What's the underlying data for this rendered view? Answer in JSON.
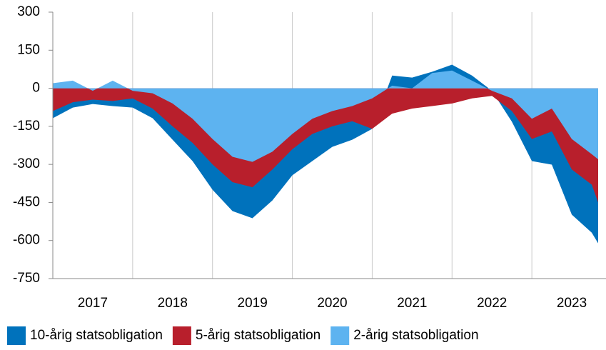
{
  "chart_data": {
    "type": "area",
    "x": [
      2017.0,
      2017.25,
      2017.5,
      2017.75,
      2018.0,
      2018.25,
      2018.5,
      2018.75,
      2019.0,
      2019.25,
      2019.5,
      2019.75,
      2020.0,
      2020.25,
      2020.5,
      2020.75,
      2021.0,
      2021.25,
      2021.5,
      2021.75,
      2022.0,
      2022.25,
      2022.5,
      2022.75,
      2023.0,
      2023.25,
      2023.5,
      2023.75,
      2023.83
    ],
    "series": [
      {
        "name": "10-årig statsobligation",
        "color": "#0072bc",
        "values": [
          -118,
          -76,
          -62,
          -70,
          -76,
          -118,
          -203,
          -287,
          -400,
          -484,
          -512,
          -442,
          -343,
          -287,
          -231,
          -203,
          -160,
          50,
          42,
          65,
          93,
          50,
          -10,
          -132,
          -287,
          -301,
          -498,
          -569,
          -611
        ]
      },
      {
        "name": "5-årig statsobligation",
        "color": "#b81f2c",
        "values": [
          -90,
          -55,
          -45,
          -50,
          -40,
          -80,
          -150,
          -215,
          -300,
          -370,
          -390,
          -320,
          -240,
          -180,
          -150,
          -130,
          -160,
          -100,
          -80,
          -70,
          -60,
          -40,
          -30,
          -90,
          -200,
          -170,
          -320,
          -380,
          -450
        ]
      },
      {
        "name": "2-årig statsobligation",
        "color": "#5db3f0",
        "values": [
          20,
          30,
          -10,
          30,
          -10,
          -20,
          -60,
          -120,
          -200,
          -270,
          -290,
          -250,
          -180,
          -120,
          -90,
          -70,
          -40,
          10,
          0,
          60,
          70,
          30,
          -10,
          -40,
          -120,
          -80,
          -200,
          -260,
          -280
        ]
      }
    ],
    "xlim": [
      2017,
      2024
    ],
    "xticks": [
      {
        "value": 2017.5,
        "label": "2017"
      },
      {
        "value": 2018.5,
        "label": "2018"
      },
      {
        "value": 2019.5,
        "label": "2019"
      },
      {
        "value": 2020.5,
        "label": "2020"
      },
      {
        "value": 2021.5,
        "label": "2021"
      },
      {
        "value": 2022.5,
        "label": "2022"
      },
      {
        "value": 2023.5,
        "label": "2023"
      }
    ],
    "xgrid": [
      2018,
      2019,
      2020,
      2021,
      2022,
      2023
    ],
    "ylim": [
      -750,
      300
    ],
    "yticks": [
      -750,
      -600,
      -450,
      -300,
      -150,
      0,
      150,
      300
    ],
    "legend": "bottom"
  }
}
